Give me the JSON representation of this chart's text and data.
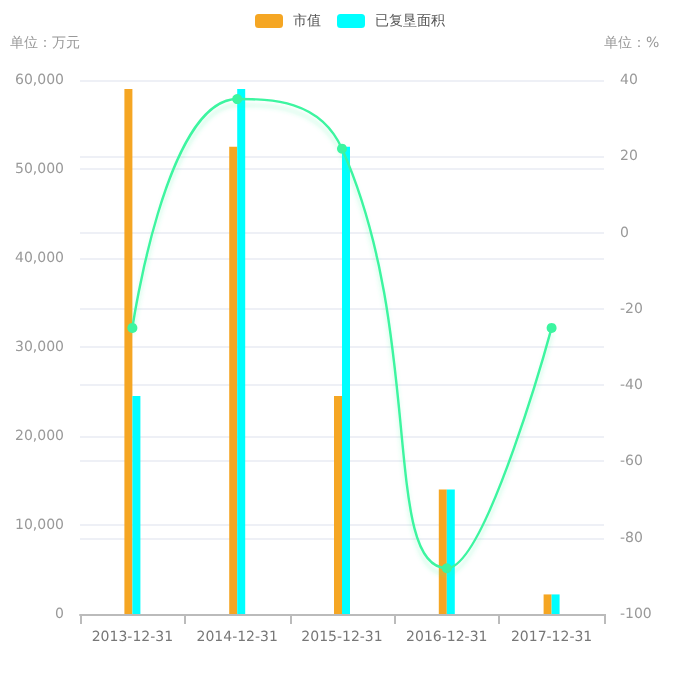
{
  "chart_data": {
    "type": "bar",
    "categories": [
      "2013-12-31",
      "2014-12-31",
      "2015-12-31",
      "2016-12-31",
      "2017-12-31"
    ],
    "series": [
      {
        "name": "市值",
        "color": "#f5a623",
        "values": [
          59000,
          52500,
          24500,
          14000,
          2200
        ]
      },
      {
        "name": "已复垦面积",
        "color": "#00ffff",
        "values": [
          24500,
          59000,
          52500,
          14000,
          2200
        ]
      },
      {
        "type": "line",
        "axis": "y2",
        "color": "#3cf5a0",
        "values": [
          -25,
          35,
          22,
          -88,
          -25
        ]
      }
    ],
    "ylabel": "单位：万元",
    "y2label": "单位：%",
    "ylim": [
      0,
      60000
    ],
    "yticks": [
      0,
      {
        "value": 10000,
        "label": "10,000"
      },
      {
        "value": 20000,
        "label": "20,000"
      },
      {
        "value": 30000,
        "label": "30,000"
      },
      {
        "value": 40000,
        "label": "40,000"
      },
      {
        "value": 50000,
        "label": "50,000"
      },
      {
        "value": 60000,
        "label": "60,000"
      }
    ],
    "y2lim": [
      -100,
      40
    ],
    "y2ticks": [
      -100,
      -80,
      -60,
      -40,
      -20,
      0,
      20,
      40
    ],
    "grid": "y",
    "legend": "top",
    "marker": "circle",
    "line_style": "solid"
  }
}
